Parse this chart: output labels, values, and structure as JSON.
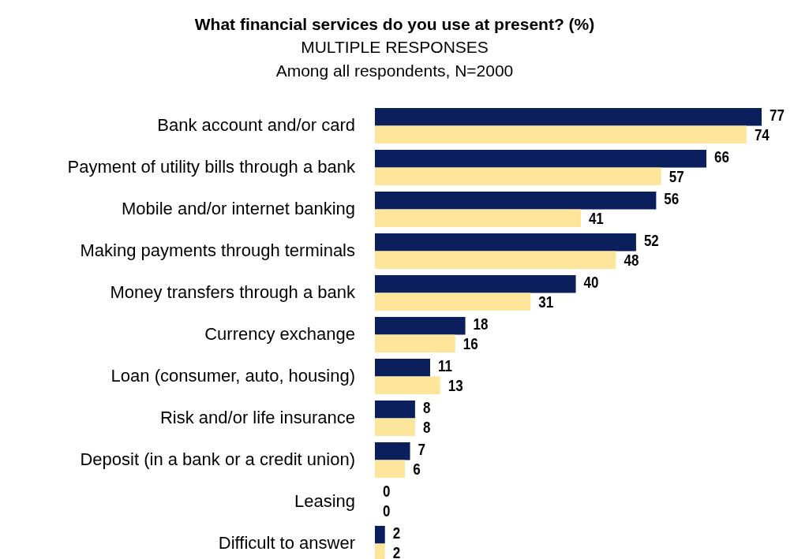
{
  "chart_data": {
    "type": "bar",
    "orientation": "horizontal",
    "title": "What financial services do you use at present? (%)",
    "subtitle": "MULTIPLE RESPONSES",
    "annotations": [
      "Among all respondents, N=2000"
    ],
    "categories": [
      "Bank account and/or card",
      "Payment of utility bills through a bank",
      "Mobile and/or internet banking",
      "Making payments through terminals",
      "Money transfers through a bank",
      "Currency exchange",
      "Loan (consumer, auto, housing)",
      "Risk and/or life insurance",
      "Deposit (in a bank or a credit union)",
      "Leasing",
      "Difficult to answer"
    ],
    "series": [
      {
        "color": "#0b1f5c",
        "values": [
          77,
          66,
          56,
          52,
          40,
          18,
          11,
          8,
          7,
          0,
          2
        ]
      },
      {
        "color": "#fde69c",
        "values": [
          74,
          57,
          41,
          48,
          31,
          16,
          13,
          8,
          6,
          0,
          2
        ]
      }
    ],
    "data_labels": true
  }
}
